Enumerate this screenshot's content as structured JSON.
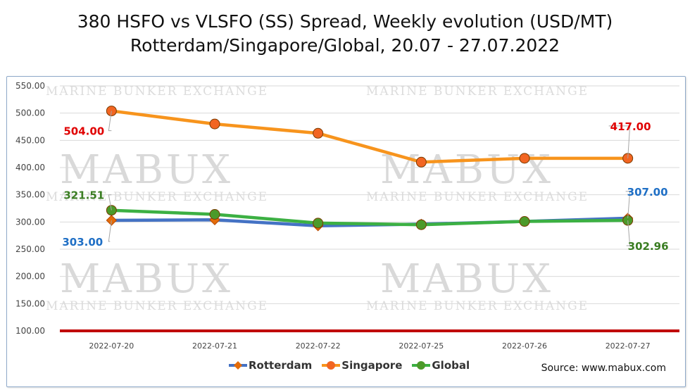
{
  "title_line1": "380 HSFO vs VLSFO (SS) Spread, Weekly evolution (USD/MT)",
  "title_line2": "Rotterdam/Singapore/Global, 20.07 - 27.07.2022",
  "source": "Source: www.mabux.com",
  "watermark": {
    "big": "MABUX",
    "small": "MARINE BUNKER EXCHANGE"
  },
  "chart_data": {
    "type": "line",
    "categories": [
      "2022-07-20",
      "2022-07-21",
      "2022-07-22",
      "2022-07-25",
      "2022-07-26",
      "2022-07-27"
    ],
    "ylim": [
      100,
      550
    ],
    "yticks": [
      "100.00",
      "150.00",
      "200.00",
      "250.00",
      "300.00",
      "350.00",
      "400.00",
      "450.00",
      "500.00",
      "550.00"
    ],
    "grid": true,
    "legend_position": "bottom",
    "series": [
      {
        "name": "Rotterdam",
        "color": "#4472c4",
        "marker_color": "#e46c0a",
        "marker": "diamond",
        "values": [
          303.0,
          304,
          293,
          296,
          301,
          307.0
        ]
      },
      {
        "name": "Singapore",
        "color": "#f7941d",
        "marker_color": "#f26522",
        "marker": "circle",
        "values": [
          504.0,
          480,
          463,
          410,
          417,
          417.0
        ]
      },
      {
        "name": "Global",
        "color": "#3cb043",
        "marker_color": "#4c9a2a",
        "marker": "circle",
        "values": [
          321.51,
          314,
          298,
          295,
          301,
          302.96
        ]
      }
    ],
    "reference_line": {
      "value": 100,
      "color": "#c00000"
    },
    "annotations": [
      {
        "text": "504.00",
        "series": "Singapore",
        "index": 0,
        "color": "#e00000"
      },
      {
        "text": "417.00",
        "series": "Singapore",
        "index": 5,
        "color": "#e00000"
      },
      {
        "text": "321.51",
        "series": "Global",
        "index": 0,
        "color": "#3a7d22"
      },
      {
        "text": "302.96",
        "series": "Global",
        "index": 5,
        "color": "#3a7d22"
      },
      {
        "text": "303.00",
        "series": "Rotterdam",
        "index": 0,
        "color": "#1f6fc5"
      },
      {
        "text": "307.00",
        "series": "Rotterdam",
        "index": 5,
        "color": "#1f6fc5"
      }
    ]
  }
}
